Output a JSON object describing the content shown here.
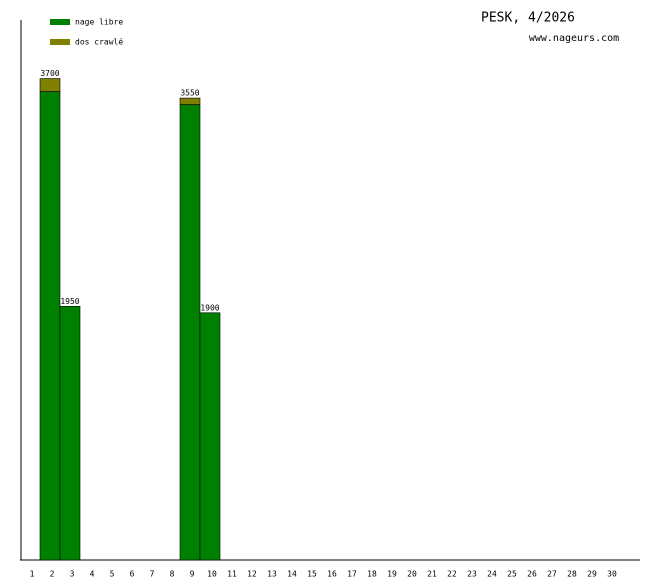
{
  "chart_data": {
    "type": "stacked_bar",
    "title": "PESK, 4/2026",
    "subtitle": "www.nageurs.com",
    "categories": [
      "1",
      "2",
      "3",
      "4",
      "5",
      "6",
      "7",
      "8",
      "9",
      "10",
      "11",
      "12",
      "13",
      "14",
      "15",
      "16",
      "17",
      "18",
      "19",
      "20",
      "21",
      "22",
      "23",
      "24",
      "25",
      "26",
      "27",
      "28",
      "29",
      "30"
    ],
    "series": [
      {
        "name": "nage libre",
        "color": "#008000",
        "values": [
          null,
          3600,
          1950,
          null,
          null,
          null,
          null,
          null,
          3500,
          1900,
          null,
          null,
          null,
          null,
          null,
          null,
          null,
          null,
          null,
          null,
          null,
          null,
          null,
          null,
          null,
          null,
          null,
          null,
          null,
          null
        ]
      },
      {
        "name": "dos crawlé",
        "color": "#808000",
        "values": [
          null,
          100,
          null,
          null,
          null,
          null,
          null,
          null,
          50,
          null,
          null,
          null,
          null,
          null,
          null,
          null,
          null,
          null,
          null,
          null,
          null,
          null,
          null,
          null,
          null,
          null,
          null,
          null,
          null,
          null
        ]
      }
    ],
    "totals": [
      null,
      3700,
      1950,
      null,
      null,
      null,
      null,
      null,
      3550,
      1900,
      null,
      null,
      null,
      null,
      null,
      null,
      null,
      null,
      null,
      null,
      null,
      null,
      null,
      null,
      null,
      null,
      null,
      null,
      null,
      null
    ],
    "ylim": [
      0,
      4150
    ]
  }
}
